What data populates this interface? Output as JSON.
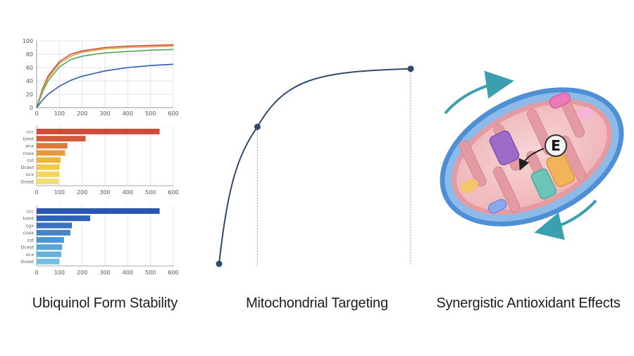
{
  "colors": {
    "curve": "#2f4a6b",
    "membrane_outer": "#4f8fd6",
    "membrane_inner": "#e8a0a6",
    "matrix": "#f2c6c8",
    "arrow": "#3a9fae"
  },
  "captions": {
    "left": "Ubiquinol Form Stability",
    "mid": "Mitochondrial Targeting",
    "right": "Synergistic Antioxidant Effects"
  },
  "enzyme_label": "E",
  "chart_data": [
    {
      "type": "line",
      "x": [
        0,
        25,
        50,
        100,
        150,
        200,
        300,
        400,
        500,
        600
      ],
      "xticks": [
        "0",
        "100",
        "200",
        "300",
        "400",
        "500",
        "600"
      ],
      "yticks": [
        "0",
        "20",
        "40",
        "60",
        "80",
        "100"
      ],
      "xlim": [
        0,
        600
      ],
      "ylim": [
        0,
        100
      ],
      "grid": true,
      "series": [
        {
          "color": "#d04a3a",
          "values": [
            0,
            28,
            47,
            69,
            80,
            85,
            90,
            92,
            93,
            94
          ]
        },
        {
          "color": "#d9a53a",
          "values": [
            0,
            26,
            44,
            66,
            77,
            83,
            88,
            90,
            91,
            92
          ]
        },
        {
          "color": "#5aa55a",
          "values": [
            0,
            23,
            40,
            61,
            72,
            77,
            82,
            84,
            86,
            87
          ]
        },
        {
          "color": "#2f5aa8",
          "values": [
            0,
            11,
            20,
            32,
            41,
            47,
            55,
            60,
            63,
            65
          ]
        }
      ]
    },
    {
      "type": "bar",
      "orientation": "horizontal",
      "categories": [
        "ccc",
        "tomt",
        "anx",
        "coax",
        "cst",
        "Dcest",
        "ocx",
        "Ocest"
      ],
      "values": [
        540,
        215,
        135,
        125,
        105,
        100,
        100,
        98
      ],
      "colors": [
        "#d04a3a",
        "#d35a3a",
        "#e0783a",
        "#e89a3a",
        "#efb43a",
        "#f2c84a",
        "#f4d460",
        "#f5dc70"
      ],
      "xticks": [
        "0",
        "100",
        "200",
        "300",
        "400",
        "500",
        "600"
      ],
      "xlim": [
        0,
        600
      ],
      "grid": true
    },
    {
      "type": "bar",
      "orientation": "horizontal",
      "categories": [
        "ccc",
        "tomt",
        "cgx",
        "coax",
        "cst",
        "Dcest",
        "ocx",
        "Ocest"
      ],
      "values": [
        540,
        235,
        155,
        148,
        120,
        112,
        108,
        100
      ],
      "colors": [
        "#2a56b0",
        "#2e62b8",
        "#3772c0",
        "#4384c8",
        "#4d95d0",
        "#58a4d6",
        "#64b2dc",
        "#72bee2"
      ],
      "xticks": [
        "0",
        "100",
        "200",
        "300",
        "400",
        "500",
        "600"
      ],
      "xlim": [
        0,
        600
      ],
      "grid": true
    },
    {
      "type": "line",
      "points": [
        [
          0,
          0
        ],
        [
          1,
          0.66
        ],
        [
          5,
          0.94
        ]
      ],
      "xlim": [
        0,
        5
      ],
      "ylim": [
        0,
        1
      ]
    }
  ]
}
